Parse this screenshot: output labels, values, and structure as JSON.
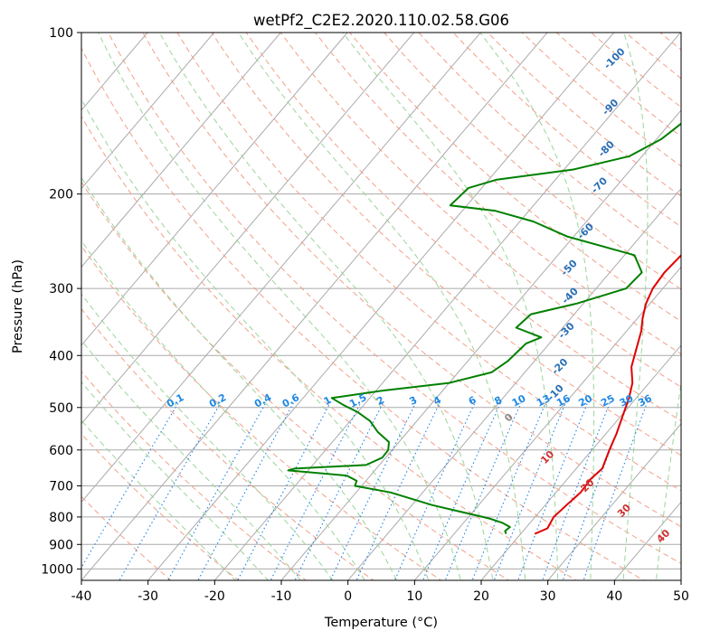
{
  "chart_data": {
    "type": "skew-t",
    "title": "wetPf2_C2E2.2020.110.02.58.G06",
    "xlabel": "Temperature (°C)",
    "ylabel": "Pressure (hPa)",
    "xlim": [
      -40,
      50
    ],
    "ylim": [
      1050,
      100
    ],
    "x_ticks": [
      -40,
      -30,
      -20,
      -10,
      0,
      10,
      20,
      30,
      40,
      50
    ],
    "y_ticks": [
      100,
      200,
      300,
      400,
      500,
      600,
      700,
      800,
      900,
      1000
    ],
    "colors": {
      "temperature": "#e00000",
      "dewpoint": "#008000",
      "isotherm": "#aaaaaa",
      "dry_adiabat": "#f2a088",
      "moist_adiabat": "#9bd49b",
      "mixing_ratio": "#1e82e6",
      "saturation": "#d2bc9b",
      "theta_label": "#2a6fb5",
      "isotherm_label": "#d03030",
      "mixing_label": "#1e88e5"
    },
    "series": [
      {
        "name": "temperature",
        "points": [
          [
            22.1,
            860
          ],
          [
            23.3,
            840
          ],
          [
            22.8,
            800
          ],
          [
            23.2,
            760
          ],
          [
            23.7,
            720
          ],
          [
            23.5,
            680
          ],
          [
            23.9,
            650
          ],
          [
            22.6,
            600
          ],
          [
            21.6,
            560
          ],
          [
            20.3,
            520
          ],
          [
            18.9,
            480
          ],
          [
            17.5,
            450
          ],
          [
            15.3,
            420
          ],
          [
            13.8,
            390
          ],
          [
            12.2,
            360
          ],
          [
            10.7,
            340
          ],
          [
            9.4,
            320
          ],
          [
            8.5,
            300
          ],
          [
            8.2,
            280
          ],
          [
            8.5,
            260
          ],
          [
            8.6,
            240
          ],
          [
            8.4,
            220
          ],
          [
            7.8,
            200
          ],
          [
            7.0,
            180
          ],
          [
            5.8,
            160
          ],
          [
            4.9,
            145
          ],
          [
            4.3,
            132
          ],
          [
            4.2,
            122
          ],
          [
            4.7,
            114
          ],
          [
            5.4,
            107
          ],
          [
            5.2,
            100
          ]
        ]
      },
      {
        "name": "dewpoint",
        "points": [
          [
            17.8,
            860
          ],
          [
            17.3,
            850
          ],
          [
            17.5,
            835
          ],
          [
            15.8,
            820
          ],
          [
            13.3,
            805
          ],
          [
            3.0,
            760
          ],
          [
            -4.8,
            720
          ],
          [
            -11.0,
            700
          ],
          [
            -11.4,
            685
          ],
          [
            -13.5,
            670
          ],
          [
            -23.0,
            655
          ],
          [
            -22.3,
            650
          ],
          [
            -12.0,
            640
          ],
          [
            -10.5,
            620
          ],
          [
            -10.6,
            600
          ],
          [
            -11.5,
            580
          ],
          [
            -14.5,
            555
          ],
          [
            -17.0,
            530
          ],
          [
            -20.0,
            510
          ],
          [
            -23.0,
            495
          ],
          [
            -25.7,
            480
          ],
          [
            -19.0,
            465
          ],
          [
            -10.0,
            450
          ],
          [
            -5.0,
            430
          ],
          [
            -4.0,
            410
          ],
          [
            -3.5,
            380
          ],
          [
            -2.0,
            370
          ],
          [
            -7.0,
            355
          ],
          [
            -6.5,
            335
          ],
          [
            -1.0,
            320
          ],
          [
            4.5,
            300
          ],
          [
            4.8,
            280
          ],
          [
            1.5,
            260
          ],
          [
            -11.0,
            240
          ],
          [
            -18.0,
            225
          ],
          [
            -25.0,
            215
          ],
          [
            -32.5,
            210
          ],
          [
            -32.0,
            195
          ],
          [
            -28.8,
            188
          ],
          [
            -18.6,
            180
          ],
          [
            -11.9,
            170
          ],
          [
            -9.3,
            158
          ],
          [
            -8.0,
            145
          ],
          [
            -6.6,
            133
          ],
          [
            -6.2,
            121
          ],
          [
            -3.6,
            111
          ],
          [
            1.8,
            100
          ]
        ]
      }
    ],
    "dry_adiabat_labels": [
      "-100",
      "-90",
      "-80",
      "-70",
      "-60",
      "-50",
      "-40",
      "-30",
      "-20",
      "-10",
      "0",
      "10",
      "20",
      "30",
      "40"
    ],
    "mixing_ratio_labels": [
      "0.1",
      "0.2",
      "0.4",
      "0.6",
      "1",
      "1.5",
      "2",
      "3",
      "4",
      "6",
      "8",
      "10",
      "13",
      "16",
      "20",
      "25",
      "30",
      "36"
    ]
  }
}
